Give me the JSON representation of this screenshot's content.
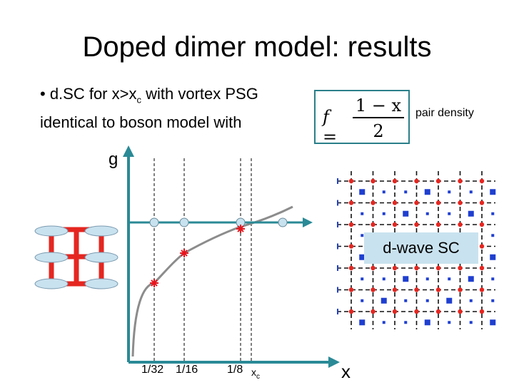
{
  "title": "Doped dimer model: results",
  "bullet": {
    "line1_pre": "• d.SC for x>x",
    "line1_sub": "c",
    "line1_post": " with vortex PSG",
    "line2": "identical to boson model with"
  },
  "formula": {
    "lhs": "f =",
    "numerator": "1 − x",
    "denominator": "2"
  },
  "pair_density_label": "pair density",
  "axis": {
    "y_label": "g",
    "x_label": "x"
  },
  "ticks": [
    "1/32",
    "1/16",
    "1/8"
  ],
  "xc_label": {
    "base": "x",
    "sub": "c"
  },
  "dwave_label": "d-wave SC",
  "colors": {
    "axis": "#2a8a96",
    "curve": "#8c8c8c",
    "star": "#e8141c",
    "lattice_red": "#e52620",
    "cylinder": "#c9e2ef",
    "blue": "#1f3fd0"
  }
}
